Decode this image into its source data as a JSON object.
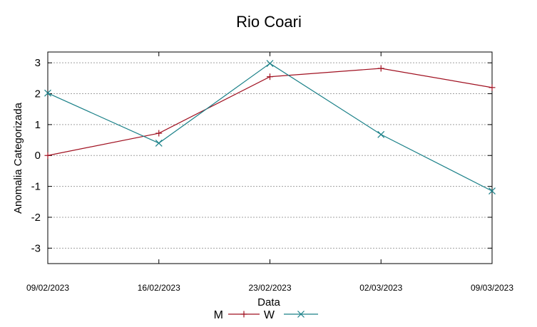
{
  "chart_data": {
    "type": "line",
    "title": "Rio Coari",
    "xlabel": "Data",
    "ylabel": "Anomalia Categorizada",
    "x": [
      "09/02/2023",
      "16/02/2023",
      "23/02/2023",
      "02/03/2023",
      "09/03/2023"
    ],
    "yticks": [
      3,
      2,
      1,
      0,
      -1,
      -2,
      -3
    ],
    "ytick_labels": [
      "3",
      "2",
      "1",
      "0",
      "-1",
      "-2",
      "-3"
    ],
    "ylim": [
      -3.5,
      3.35
    ],
    "grid": true,
    "legend_placement": "bottom-center",
    "series": [
      {
        "name": "M",
        "color": "#a01020",
        "marker": "+",
        "values": [
          0.0,
          0.72,
          2.55,
          2.82,
          2.2
        ]
      },
      {
        "name": "W",
        "color": "#1a8088",
        "marker": "x",
        "values": [
          2.02,
          0.4,
          2.98,
          0.68,
          -1.15
        ]
      }
    ]
  }
}
